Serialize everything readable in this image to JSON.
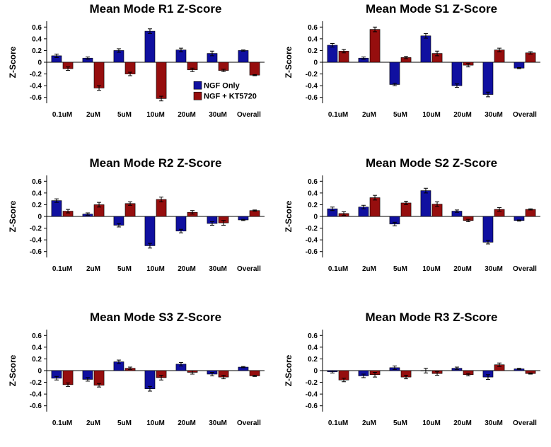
{
  "chart_data": [
    {
      "type": "bar",
      "title": "Mean Mode R1 Z-Score",
      "ylabel": "Z-Score",
      "categories": [
        "0.1uM",
        "2uM",
        "5uM",
        "10uM",
        "20uM",
        "30uM",
        "Overall"
      ],
      "ylim": [
        -0.7,
        0.7
      ],
      "yticks": [
        0.6,
        0.4,
        0.2,
        0,
        -0.2,
        -0.4,
        -0.6
      ],
      "legend": "bottom-right",
      "series": [
        {
          "name": "NGF Only",
          "color": "#1010a0",
          "values": [
            0.11,
            0.07,
            0.2,
            0.53,
            0.21,
            0.15,
            0.2
          ],
          "errors": [
            0.03,
            0.02,
            0.03,
            0.04,
            0.03,
            0.04,
            0.01
          ]
        },
        {
          "name": "NGF + KT5720",
          "color": "#960e0e",
          "values": [
            -0.11,
            -0.44,
            -0.2,
            -0.62,
            -0.13,
            -0.14,
            -0.22
          ],
          "errors": [
            0.03,
            0.04,
            0.03,
            0.04,
            0.03,
            0.02,
            0.01
          ]
        }
      ]
    },
    {
      "type": "bar",
      "title": "Mean Mode S1 Z-Score",
      "ylabel": "Z-Score",
      "categories": [
        "0.1uM",
        "2uM",
        "5uM",
        "10uM",
        "20uM",
        "30uM",
        "Overall"
      ],
      "ylim": [
        -0.7,
        0.7
      ],
      "yticks": [
        0.6,
        0.4,
        0.2,
        0,
        -0.2,
        -0.4,
        -0.6
      ],
      "series": [
        {
          "name": "NGF Only",
          "color": "#1010a0",
          "values": [
            0.29,
            0.07,
            -0.38,
            0.45,
            -0.4,
            -0.55,
            -0.1
          ],
          "errors": [
            0.03,
            0.02,
            0.02,
            0.04,
            0.03,
            0.04,
            0.01
          ]
        },
        {
          "name": "NGF + KT5720",
          "color": "#960e0e",
          "values": [
            0.19,
            0.56,
            0.08,
            0.15,
            -0.05,
            0.21,
            0.16
          ],
          "errors": [
            0.03,
            0.04,
            0.02,
            0.04,
            0.03,
            0.03,
            0.02
          ]
        }
      ]
    },
    {
      "type": "bar",
      "title": "Mean Mode R2 Z-Score",
      "ylabel": "Z-Score",
      "categories": [
        "0.1uM",
        "2uM",
        "5uM",
        "10uM",
        "20uM",
        "30uM",
        "Overall"
      ],
      "ylim": [
        -0.7,
        0.7
      ],
      "yticks": [
        0.6,
        0.4,
        0.2,
        0,
        -0.2,
        -0.4,
        -0.6
      ],
      "series": [
        {
          "name": "NGF Only",
          "color": "#1010a0",
          "values": [
            0.27,
            0.04,
            -0.15,
            -0.5,
            -0.25,
            -0.12,
            -0.06
          ],
          "errors": [
            0.03,
            0.02,
            0.03,
            0.04,
            0.03,
            0.03,
            0.01
          ]
        },
        {
          "name": "NGF + KT5720",
          "color": "#960e0e",
          "values": [
            0.09,
            0.2,
            0.22,
            0.29,
            0.07,
            -0.11,
            0.1
          ],
          "errors": [
            0.03,
            0.04,
            0.03,
            0.04,
            0.03,
            0.04,
            0.01
          ]
        }
      ]
    },
    {
      "type": "bar",
      "title": "Mean Mode S2 Z-Score",
      "ylabel": "Z-Score",
      "categories": [
        "0.1uM",
        "2uM",
        "5uM",
        "10uM",
        "20uM",
        "30uM",
        "Overall"
      ],
      "ylim": [
        -0.7,
        0.7
      ],
      "yticks": [
        0.6,
        0.4,
        0.2,
        0,
        -0.2,
        -0.4,
        -0.6
      ],
      "series": [
        {
          "name": "NGF Only",
          "color": "#1010a0",
          "values": [
            0.13,
            0.16,
            -0.13,
            0.44,
            0.09,
            -0.44,
            -0.07
          ],
          "errors": [
            0.03,
            0.03,
            0.03,
            0.04,
            0.02,
            0.03,
            0.01
          ]
        },
        {
          "name": "NGF + KT5720",
          "color": "#960e0e",
          "values": [
            0.05,
            0.32,
            0.23,
            0.21,
            -0.07,
            0.12,
            0.12
          ],
          "errors": [
            0.03,
            0.04,
            0.03,
            0.04,
            0.02,
            0.03,
            0.01
          ]
        }
      ]
    },
    {
      "type": "bar",
      "title": "Mean Mode S3 Z-Score",
      "ylabel": "Z-Score",
      "categories": [
        "0.1uM",
        "2uM",
        "5uM",
        "10uM",
        "20uM",
        "30uM",
        "Overall"
      ],
      "ylim": [
        -0.7,
        0.7
      ],
      "yticks": [
        0.6,
        0.4,
        0.2,
        0,
        -0.2,
        -0.4,
        -0.6
      ],
      "series": [
        {
          "name": "NGF Only",
          "color": "#1010a0",
          "values": [
            -0.13,
            -0.15,
            0.15,
            -0.31,
            0.11,
            -0.06,
            0.06
          ],
          "errors": [
            0.03,
            0.03,
            0.03,
            0.04,
            0.03,
            0.03,
            0.01
          ]
        },
        {
          "name": "NGF + KT5720",
          "color": "#960e0e",
          "values": [
            -0.24,
            -0.25,
            0.04,
            -0.12,
            -0.03,
            -0.11,
            -0.09
          ],
          "errors": [
            0.03,
            0.03,
            0.02,
            0.04,
            0.03,
            0.03,
            0.01
          ]
        }
      ]
    },
    {
      "type": "bar",
      "title": "Mean Mode R3 Z-Score",
      "ylabel": "Z-Score",
      "categories": [
        "0.1uM",
        "2uM",
        "5uM",
        "10uM",
        "20uM",
        "30uM",
        "Overall"
      ],
      "ylim": [
        -0.7,
        0.7
      ],
      "yticks": [
        0.6,
        0.4,
        0.2,
        0,
        -0.2,
        -0.4,
        -0.6
      ],
      "series": [
        {
          "name": "NGF Only",
          "color": "#1010a0",
          "values": [
            -0.02,
            -0.09,
            0.05,
            0.0,
            0.04,
            -0.11,
            0.03
          ],
          "errors": [
            0.02,
            0.03,
            0.03,
            0.04,
            0.02,
            0.04,
            0.01
          ]
        },
        {
          "name": "NGF + KT5720",
          "color": "#960e0e",
          "values": [
            -0.16,
            -0.07,
            -0.11,
            -0.05,
            -0.07,
            0.1,
            -0.05
          ],
          "errors": [
            0.03,
            0.04,
            0.03,
            0.03,
            0.02,
            0.03,
            0.01
          ]
        }
      ]
    }
  ]
}
